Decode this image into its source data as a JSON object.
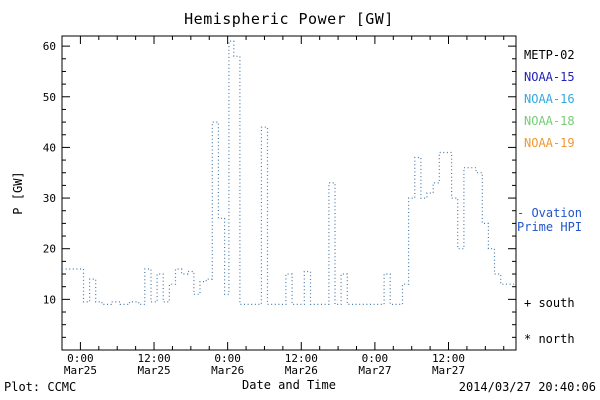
{
  "title": "Hemispheric Power [GW]",
  "legend": {
    "satellites": [
      {
        "label": "METP-02",
        "color": "#000000"
      },
      {
        "label": "NOAA-15",
        "color": "#2222bb"
      },
      {
        "label": "NOAA-16",
        "color": "#33aadd"
      },
      {
        "label": "NOAA-18",
        "color": "#77cc77"
      },
      {
        "label": "NOAA-19",
        "color": "#ee9933"
      }
    ],
    "ovation": {
      "lines": [
        "- Ovation",
        "Prime HPI"
      ],
      "color": "#2255cc"
    }
  },
  "annotations": {
    "south": "+ south",
    "north": "* north"
  },
  "footer": {
    "left": "Plot: CCMC",
    "timestamp": "2014/03/27 20:40:06"
  },
  "chart_data": {
    "type": "line",
    "step": true,
    "line_style": "dotted",
    "color": "#4779a9",
    "title": "Hemispheric Power [GW]",
    "xlabel": "Date and Time",
    "ylabel": "P [GW]",
    "xlim": [
      -3,
      71
    ],
    "ylim": [
      0,
      62
    ],
    "x_unit": "hours since 2014-03-25 00:00",
    "xticks": [
      {
        "hours": 0,
        "time": "0:00",
        "date": "Mar25"
      },
      {
        "hours": 12,
        "time": "12:00",
        "date": "Mar25"
      },
      {
        "hours": 24,
        "time": "0:00",
        "date": "Mar26"
      },
      {
        "hours": 36,
        "time": "12:00",
        "date": "Mar26"
      },
      {
        "hours": 48,
        "time": "0:00",
        "date": "Mar27"
      },
      {
        "hours": 60,
        "time": "12:00",
        "date": "Mar27"
      }
    ],
    "x_minor_step_hours": 3,
    "yticks": [
      10,
      20,
      30,
      40,
      50,
      60
    ],
    "y_minor_step": 2.5,
    "x": [
      -3,
      0.5,
      1.5,
      2.5,
      3.5,
      5,
      6.5,
      8,
      9.5,
      10.5,
      11.5,
      12.5,
      13.5,
      14.5,
      15.5,
      16.5,
      17.5,
      18.5,
      19.5,
      20.5,
      21.5,
      22.5,
      23.5,
      24.2,
      25,
      26,
      29.5,
      30.5,
      33.5,
      34.5,
      36.5,
      37.5,
      40.5,
      41.5,
      42.5,
      43.5,
      49.5,
      50.5,
      52.5,
      53.5,
      54.5,
      55.5,
      56.5,
      57.5,
      58.5,
      59.5,
      60.5,
      61.5,
      62.5,
      63.5,
      64.5,
      65.5,
      66.5,
      67.5,
      68.5
    ],
    "y": [
      16,
      9.5,
      14,
      9.5,
      9,
      9.5,
      9,
      9.5,
      9,
      16,
      9.5,
      15,
      9.5,
      13,
      16,
      15,
      15.5,
      11,
      13.5,
      14,
      45,
      26,
      11,
      61,
      58,
      9,
      44,
      9,
      15,
      9,
      15.5,
      9,
      33,
      9,
      15,
      9,
      15,
      9,
      13,
      30,
      38,
      30,
      31,
      33,
      39,
      39,
      30,
      20,
      36,
      36,
      35,
      25,
      20,
      15,
      13
    ]
  }
}
